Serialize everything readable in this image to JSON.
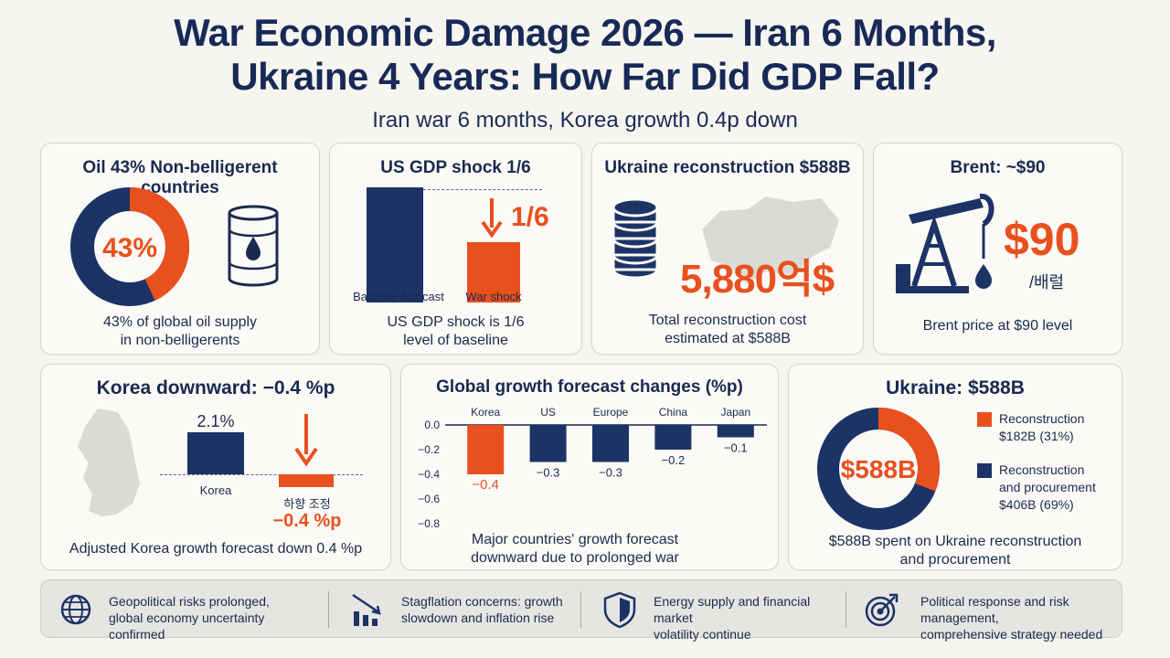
{
  "header": {
    "title_line1": "War Economic Damage 2026 — Iran 6 Months,",
    "title_line2": "Ukraine 4 Years: How Far Did GDP Fall?",
    "subtitle": "Iran war 6 months, Korea growth 0.4p down"
  },
  "colors": {
    "navy": "#1c3366",
    "orange": "#e8501e",
    "background": "#f7f5ef"
  },
  "cards": {
    "oil": {
      "title": "Oil 43% Non-belligerent countries",
      "donut_label": "43%",
      "donut_value": 43,
      "icon": "oil-barrel-icon",
      "caption_line1": "43% of global oil supply",
      "caption_line2": "in non-belligerents"
    },
    "us_gdp": {
      "title": "US GDP shock 1/6",
      "ratio_label": "1/6",
      "ratio_value": 0.1667,
      "bar_baseline_label": "Baseline forecast",
      "bar_war_label": "War shock",
      "caption_line1": "US GDP shock is 1/6",
      "caption_line2": "level of baseline"
    },
    "ukraine_recon": {
      "title": "Ukraine reconstruction $588B",
      "big_value": "5,880억$",
      "icon": "coin-stack-icon",
      "caption_line1": "Total reconstruction cost",
      "caption_line2": "estimated at $588B"
    },
    "brent": {
      "title": "Brent: ~$90",
      "price": "$90",
      "unit": "/배럴",
      "icon": "oil-pump-icon",
      "caption": "Brent price at $90 level"
    },
    "korea": {
      "title": "Korea downward: −0.4 %p",
      "bar_value_label": "2.1%",
      "bar_label": "Korea",
      "adjust_label": "하향 조정",
      "adjust_value": "−0.4 %p",
      "caption": "Adjusted Korea growth forecast down 0.4 %p",
      "icon": "korea-map-icon"
    },
    "ukraine_split": {
      "title": "Ukraine: $588B",
      "donut_label": "$588B",
      "legend": [
        {
          "line1": "Reconstruction",
          "line2": "$182B (31%)",
          "color": "#e8501e",
          "share": 31
        },
        {
          "line1": "Reconstruction",
          "line2": "and procurement",
          "line3": "$406B (69%)",
          "color": "#1c3366",
          "share": 69
        }
      ],
      "caption_line1": "$588B spent on Ukraine reconstruction",
      "caption_line2": "and procurement"
    }
  },
  "chart_data": {
    "type": "bar",
    "title": "Global growth forecast changes (%p)",
    "categories": [
      "Korea",
      "US",
      "Europe",
      "China",
      "Japan"
    ],
    "values": [
      -0.4,
      -0.3,
      -0.3,
      -0.2,
      -0.1
    ],
    "value_labels": [
      "−0.4",
      "−0.3",
      "−0.3",
      "−0.2",
      "−0.1"
    ],
    "colors": [
      "#e8501e",
      "#1c3366",
      "#1c3366",
      "#1c3366",
      "#1c3366"
    ],
    "yticks": [
      "0.0",
      "−0.2",
      "−0.4",
      "−0.6",
      "−0.8"
    ],
    "ylim": [
      -0.8,
      0.0
    ],
    "caption_line1": "Major countries' growth forecast",
    "caption_line2": "downward due to prolonged war"
  },
  "bottom_bar": [
    {
      "icon": "globe-icon",
      "line1": "Geopolitical risks prolonged,",
      "line2": "global economy uncertainty confirmed"
    },
    {
      "icon": "declining-chart-icon",
      "line1": "Stagflation concerns: growth",
      "line2": "slowdown and inflation rise"
    },
    {
      "icon": "shield-icon",
      "line1": "Energy supply and financial market",
      "line2": "volatility continue"
    },
    {
      "icon": "target-icon",
      "line1": "Political response and risk management,",
      "line2": "comprehensive strategy needed"
    }
  ]
}
